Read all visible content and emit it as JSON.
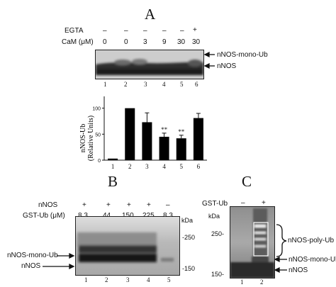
{
  "panelA": {
    "letter": "A",
    "row_egta_label": "EGTA",
    "row_egta": [
      "–",
      "–",
      "–",
      "–",
      "–",
      "+"
    ],
    "row_cam_label": "CaM (μM)",
    "row_cam": [
      "0",
      "0",
      "3",
      "9",
      "30",
      "30"
    ],
    "band_top": "nNOS-mono-Ub",
    "band_bottom": "nNOS",
    "lanes": [
      "1",
      "2",
      "3",
      "4",
      "5",
      "6"
    ]
  },
  "chart_data": {
    "type": "bar",
    "categories": [
      "1",
      "2",
      "3",
      "4",
      "5",
      "6"
    ],
    "values": [
      3,
      100,
      73,
      45,
      42,
      81
    ],
    "errors": [
      0,
      0,
      18,
      7,
      6,
      9
    ],
    "significance": [
      "",
      "",
      "",
      "**",
      "**",
      ""
    ],
    "ylabel_line1": "nNOS-Ub",
    "ylabel_line2": "(Relative Units)",
    "yticks": [
      "0",
      "50",
      "100"
    ],
    "ylim": [
      0,
      120
    ],
    "bar_color": "#000000"
  },
  "panelB": {
    "letter": "B",
    "row_nos_label": "nNOS",
    "row_nos": [
      "+",
      "+",
      "+",
      "+",
      "–"
    ],
    "row_gst_label": "GST-Ub (μM)",
    "row_gst": [
      "8.3",
      "44",
      "150",
      "225",
      "8.3"
    ],
    "kda_label": "kDa",
    "marker_250": "-250",
    "marker_150": "-150",
    "band_top": "nNOS-mono-Ub",
    "band_bottom": "nNOS",
    "lanes": [
      "1",
      "2",
      "3",
      "4",
      "5"
    ]
  },
  "panelC": {
    "letter": "C",
    "row_gst_label": "GST-Ub",
    "row_gst": [
      "–",
      "+"
    ],
    "kda_label": "kDa",
    "marker_250": "250-",
    "marker_150": "150-",
    "band_poly": "nNOS-poly-Ub",
    "band_mono": "nNOS-mono-Ub",
    "band_bottom": "nNOS",
    "lanes": [
      "1",
      "2"
    ]
  }
}
